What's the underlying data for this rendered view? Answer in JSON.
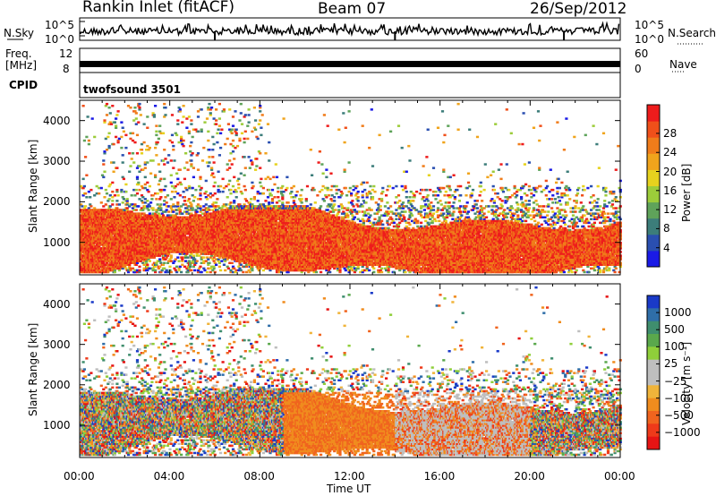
{
  "header": {
    "station": "Rankin Inlet (fitACF)",
    "beam": "Beam 07",
    "date": "26/Sep/2012"
  },
  "aux_panels": {
    "nsky_label": "N.Sky",
    "nsky_ticks": [
      "10^5",
      "10^0"
    ],
    "nsearch_label": "N.Search",
    "nsearch_ticks": [
      "10^5",
      "10^0"
    ],
    "freq_label_1": "Freq.",
    "freq_label_2": "[MHz]",
    "freq_ticks": [
      "12",
      "8"
    ],
    "nave_label": "Nave",
    "nave_ticks": [
      "60",
      "0"
    ],
    "cpid_label": "CPID",
    "cpid_value": "twofsound 3501"
  },
  "chart_data": [
    {
      "type": "heatmap",
      "name": "power",
      "xlabel": "",
      "ylabel": "Slant Range [km]",
      "xlim": [
        "00:00",
        "24:00"
      ],
      "ylim": [
        200,
        4500
      ],
      "x_ticks": [
        "00:00",
        "04:00",
        "08:00",
        "12:00",
        "16:00",
        "20:00",
        "00:00"
      ],
      "y_ticks": [
        1000,
        2000,
        3000,
        4000
      ],
      "colorbar": {
        "label": "Power [dB]",
        "ticks": [
          4,
          8,
          12,
          16,
          20,
          24,
          28
        ],
        "colors": [
          "#1a1ae6",
          "#2a4fb0",
          "#3c7d7a",
          "#5fa35a",
          "#9ccc3a",
          "#e6d21e",
          "#f0a41c",
          "#f07c1a",
          "#f0501a",
          "#ee1c1c"
        ]
      },
      "description_values": {
        "dense_band_km": [
          400,
          1700
        ],
        "dominant_power_dB": 28
      }
    },
    {
      "type": "heatmap",
      "name": "velocity",
      "xlabel": "Time UT",
      "ylabel": "Slant Range [km]",
      "xlim": [
        "00:00",
        "24:00"
      ],
      "ylim": [
        200,
        4500
      ],
      "x_ticks": [
        "00:00",
        "04:00",
        "08:00",
        "12:00",
        "16:00",
        "20:00",
        "00:00"
      ],
      "y_ticks": [
        1000,
        2000,
        3000,
        4000
      ],
      "colorbar": {
        "label": "Velocity [m s⁻¹]",
        "ticks": [
          "1000",
          "500",
          "100",
          "25",
          "−25",
          "−100",
          "−500",
          "−1000"
        ],
        "colors": [
          "#1a3ac8",
          "#2f6ea8",
          "#3f8e6e",
          "#5aa84c",
          "#8fcf3a",
          "#bebebe",
          "#bebebe",
          "#f0b43a",
          "#f08c1e",
          "#f0641e",
          "#ee3a1a",
          "#e61414"
        ]
      },
      "description_values": {
        "dense_band_km": [
          400,
          1700
        ]
      }
    }
  ]
}
